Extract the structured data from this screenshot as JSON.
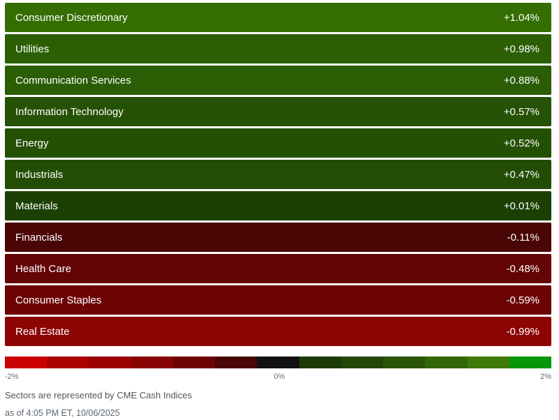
{
  "rows": [
    {
      "label": "Consumer Discretionary",
      "value": "+1.04%",
      "color": "#346e03"
    },
    {
      "label": "Utilities",
      "value": "+0.98%",
      "color": "#2c5f04"
    },
    {
      "label": "Communication Services",
      "value": "+0.88%",
      "color": "#2b5d04"
    },
    {
      "label": "Information Technology",
      "value": "+0.57%",
      "color": "#255204"
    },
    {
      "label": "Energy",
      "value": "+0.52%",
      "color": "#245004"
    },
    {
      "label": "Industrials",
      "value": "+0.47%",
      "color": "#234d04"
    },
    {
      "label": "Materials",
      "value": "+0.01%",
      "color": "#1c4003"
    },
    {
      "label": "Financials",
      "value": "-0.11%",
      "color": "#4a0505"
    },
    {
      "label": "Health Care",
      "value": "-0.48%",
      "color": "#640404"
    },
    {
      "label": "Consumer Staples",
      "value": "-0.59%",
      "color": "#6c0404"
    },
    {
      "label": "Real Estate",
      "value": "-0.99%",
      "color": "#8d0404"
    }
  ],
  "scale": {
    "segments": [
      "#c90201",
      "#ad0202",
      "#9b0303",
      "#880404",
      "#6d0404",
      "#490606",
      "#121212",
      "#1d3a06",
      "#224706",
      "#2a5506",
      "#336807",
      "#3d7a07",
      "#079607"
    ],
    "labels": {
      "min": "-2%",
      "mid": "0%",
      "max": "2%"
    }
  },
  "footer": {
    "note": "Sectors are represented by CME Cash Indices",
    "as_of": "as of 4:05 PM ET, 10/06/2025"
  },
  "chart_data": {
    "type": "heatmap",
    "categories": [
      "Consumer Discretionary",
      "Utilities",
      "Communication Services",
      "Information Technology",
      "Energy",
      "Industrials",
      "Materials",
      "Financials",
      "Health Care",
      "Consumer Staples",
      "Real Estate"
    ],
    "values": [
      1.04,
      0.98,
      0.88,
      0.57,
      0.52,
      0.47,
      0.01,
      -0.11,
      -0.48,
      -0.59,
      -0.99
    ],
    "title": "",
    "xlabel": "",
    "ylabel": "",
    "unit": "%",
    "color_scale_range": [
      -2,
      0,
      2
    ],
    "color_scale_labels": [
      "-2%",
      "0%",
      "2%"
    ],
    "positive_color": "green",
    "negative_color": "red",
    "footnote": "Sectors are represented by CME Cash Indices",
    "as_of": "as of 4:05 PM ET, 10/06/2025"
  }
}
